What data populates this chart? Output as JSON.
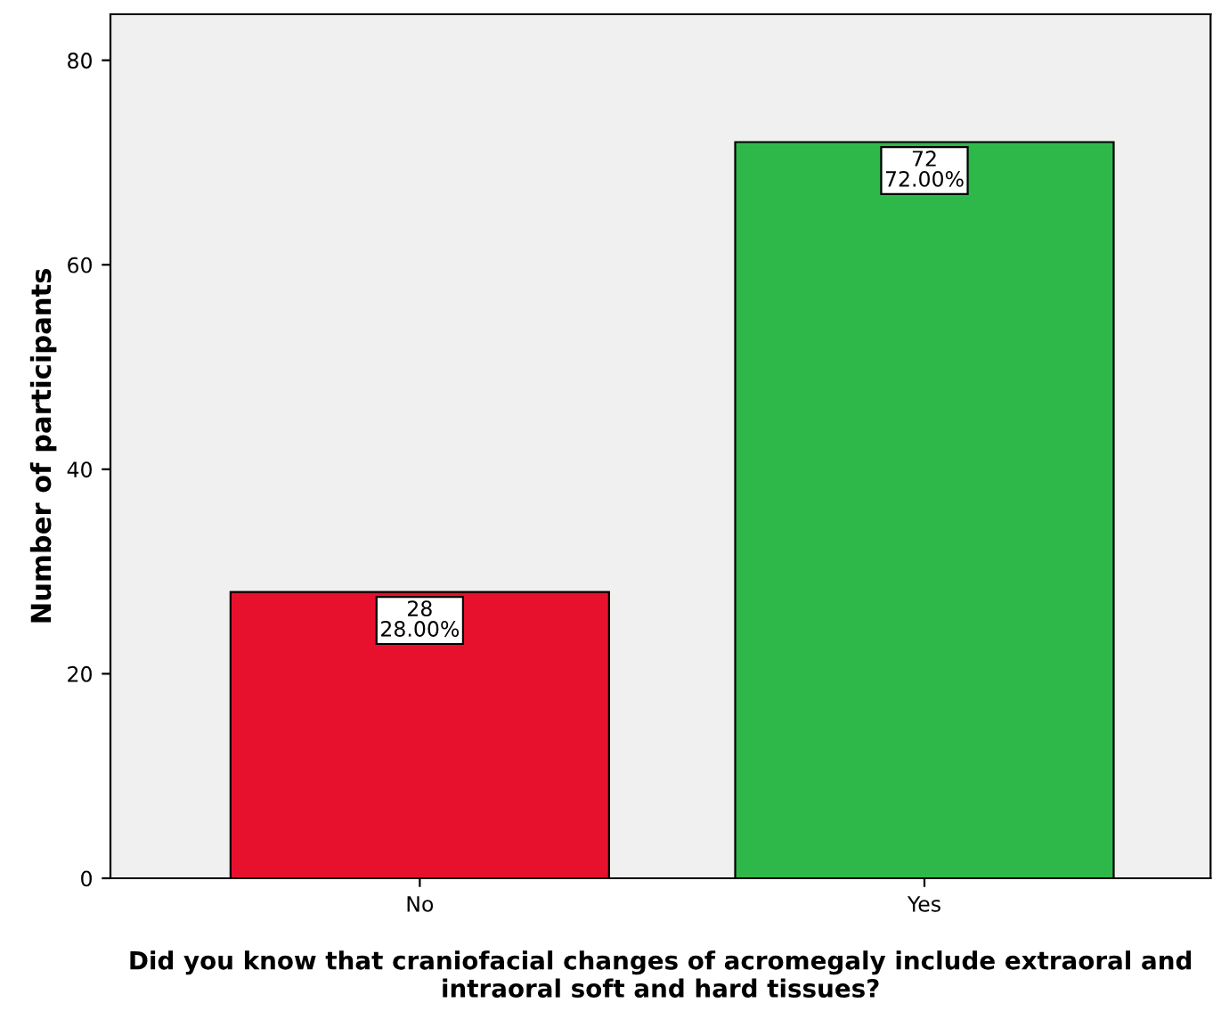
{
  "chart_data": {
    "type": "bar",
    "xlabel": "Did you know that craniofacial changes of acromegaly include extraoral and intraoral soft and hard tissues?",
    "ylabel": "Number of participants",
    "categories": [
      "No",
      "Yes"
    ],
    "values": [
      28,
      72
    ],
    "colors": [
      "#e8112d",
      "#2fb84a"
    ],
    "value_labels": [
      "28\n28.00%",
      "72\n72.00%"
    ],
    "ylim": [
      0,
      84.5
    ],
    "yticks": [
      0,
      20,
      40,
      60,
      80
    ],
    "grid": false
  }
}
